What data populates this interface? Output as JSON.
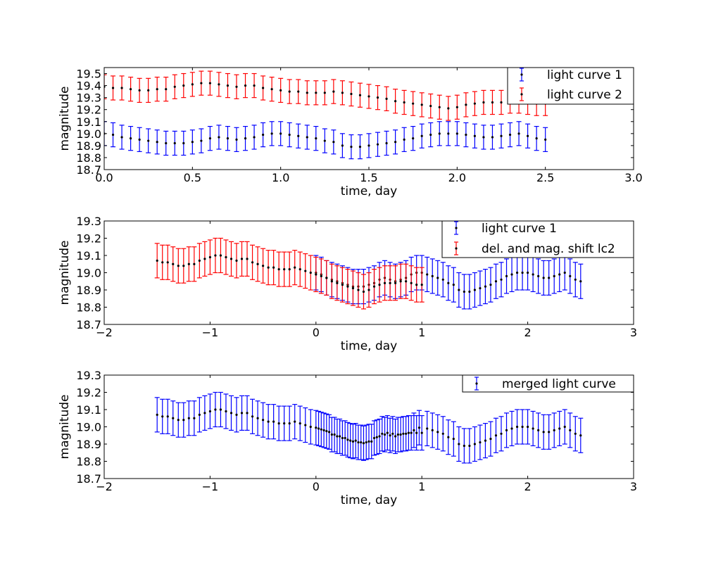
{
  "chart_data": [
    {
      "type": "scatter",
      "title": "",
      "xlabel": "time, day",
      "ylabel": "magnitude",
      "xlim": [
        0,
        3
      ],
      "ylim": [
        18.7,
        19.55
      ],
      "xticks": [
        {
          "value": 0.0,
          "label": "0.0"
        },
        {
          "value": 0.5,
          "label": "0.5"
        },
        {
          "value": 1.0,
          "label": "1.0"
        },
        {
          "value": 1.5,
          "label": "1.5"
        },
        {
          "value": 2.0,
          "label": "2.0"
        },
        {
          "value": 2.5,
          "label": "2.5"
        },
        {
          "value": 3.0,
          "label": "3.0"
        }
      ],
      "yticks": [
        {
          "value": 18.7,
          "label": "18.7"
        },
        {
          "value": 18.8,
          "label": "18.8"
        },
        {
          "value": 18.9,
          "label": "18.9"
        },
        {
          "value": 19.0,
          "label": "19.0"
        },
        {
          "value": 19.1,
          "label": "19.1"
        },
        {
          "value": 19.2,
          "label": "19.2"
        },
        {
          "value": 19.3,
          "label": "19.3"
        },
        {
          "value": 19.4,
          "label": "19.4"
        },
        {
          "value": 19.5,
          "label": "19.5"
        }
      ],
      "error_bar": 0.1,
      "grid": false,
      "legend_position": "upper right",
      "series": [
        {
          "name": "light curve 1",
          "color": "#0000ff",
          "x": [
            0.0,
            0.05,
            0.1,
            0.15,
            0.2,
            0.25,
            0.3,
            0.35,
            0.4,
            0.45,
            0.5,
            0.55,
            0.6,
            0.65,
            0.7,
            0.75,
            0.8,
            0.85,
            0.9,
            0.95,
            1.0,
            1.05,
            1.1,
            1.15,
            1.2,
            1.25,
            1.3,
            1.35,
            1.4,
            1.45,
            1.5,
            1.55,
            1.6,
            1.65,
            1.7,
            1.75,
            1.8,
            1.85,
            1.9,
            1.95,
            2.0,
            2.05,
            2.1,
            2.15,
            2.2,
            2.25,
            2.3,
            2.35,
            2.4,
            2.45,
            2.5
          ],
          "y": [
            19.0,
            18.99,
            18.97,
            18.96,
            18.95,
            18.94,
            18.93,
            18.92,
            18.92,
            18.92,
            18.93,
            18.94,
            18.96,
            18.97,
            18.96,
            18.95,
            18.96,
            18.97,
            18.99,
            19.0,
            19.0,
            18.99,
            18.98,
            18.97,
            18.96,
            18.94,
            18.93,
            18.9,
            18.89,
            18.89,
            18.9,
            18.91,
            18.92,
            18.93,
            18.95,
            18.96,
            18.98,
            18.99,
            19.0,
            19.0,
            19.0,
            18.99,
            18.98,
            18.97,
            18.97,
            18.98,
            18.99,
            19.0,
            18.98,
            18.96,
            18.95
          ]
        },
        {
          "name": "light curve 2",
          "color": "#ff0000",
          "x": [
            0.0,
            0.05,
            0.1,
            0.15,
            0.2,
            0.25,
            0.3,
            0.35,
            0.4,
            0.45,
            0.5,
            0.55,
            0.6,
            0.65,
            0.7,
            0.75,
            0.8,
            0.85,
            0.9,
            0.95,
            1.0,
            1.05,
            1.1,
            1.15,
            1.2,
            1.25,
            1.3,
            1.35,
            1.4,
            1.45,
            1.5,
            1.55,
            1.6,
            1.65,
            1.7,
            1.75,
            1.8,
            1.85,
            1.9,
            1.95,
            2.0,
            2.05,
            2.1,
            2.15,
            2.2,
            2.25,
            2.3,
            2.35,
            2.4,
            2.45,
            2.5
          ],
          "y": [
            19.39,
            19.38,
            19.38,
            19.37,
            19.36,
            19.36,
            19.37,
            19.37,
            19.39,
            19.4,
            19.41,
            19.42,
            19.42,
            19.41,
            19.4,
            19.39,
            19.4,
            19.4,
            19.38,
            19.37,
            19.36,
            19.35,
            19.35,
            19.34,
            19.34,
            19.34,
            19.35,
            19.34,
            19.33,
            19.32,
            19.31,
            19.3,
            19.29,
            19.27,
            19.26,
            19.25,
            19.24,
            19.23,
            19.22,
            19.21,
            19.22,
            19.24,
            19.25,
            19.26,
            19.26,
            19.26,
            19.27,
            19.27,
            19.26,
            19.25,
            19.25
          ]
        }
      ]
    },
    {
      "type": "scatter",
      "title": "",
      "xlabel": "time, day",
      "ylabel": "magnitude",
      "xlim": [
        -2,
        3
      ],
      "ylim": [
        18.7,
        19.3
      ],
      "xticks": [
        {
          "value": -2,
          "label": "−2"
        },
        {
          "value": -1,
          "label": "−1"
        },
        {
          "value": 0,
          "label": "0"
        },
        {
          "value": 1,
          "label": "1"
        },
        {
          "value": 2,
          "label": "2"
        },
        {
          "value": 3,
          "label": "3"
        }
      ],
      "yticks": [
        {
          "value": 18.7,
          "label": "18.7"
        },
        {
          "value": 18.8,
          "label": "18.8"
        },
        {
          "value": 18.9,
          "label": "18.9"
        },
        {
          "value": 19.0,
          "label": "19.0"
        },
        {
          "value": 19.1,
          "label": "19.1"
        },
        {
          "value": 19.2,
          "label": "19.2"
        },
        {
          "value": 19.3,
          "label": "19.3"
        }
      ],
      "error_bar": 0.1,
      "grid": false,
      "legend_position": "upper right",
      "series": [
        {
          "name": "light curve 1",
          "color": "#0000ff",
          "x": [
            0.0,
            0.05,
            0.1,
            0.15,
            0.2,
            0.25,
            0.3,
            0.35,
            0.4,
            0.45,
            0.5,
            0.55,
            0.6,
            0.65,
            0.7,
            0.75,
            0.8,
            0.85,
            0.9,
            0.95,
            1.0,
            1.05,
            1.1,
            1.15,
            1.2,
            1.25,
            1.3,
            1.35,
            1.4,
            1.45,
            1.5,
            1.55,
            1.6,
            1.65,
            1.7,
            1.75,
            1.8,
            1.85,
            1.9,
            1.95,
            2.0,
            2.05,
            2.1,
            2.15,
            2.2,
            2.25,
            2.3,
            2.35,
            2.4,
            2.45,
            2.5
          ],
          "y": [
            19.0,
            18.99,
            18.97,
            18.96,
            18.95,
            18.94,
            18.93,
            18.92,
            18.92,
            18.92,
            18.93,
            18.94,
            18.96,
            18.97,
            18.96,
            18.95,
            18.96,
            18.97,
            18.99,
            19.0,
            19.0,
            18.99,
            18.98,
            18.97,
            18.96,
            18.94,
            18.93,
            18.9,
            18.89,
            18.89,
            18.9,
            18.91,
            18.92,
            18.93,
            18.95,
            18.96,
            18.98,
            18.99,
            19.0,
            19.0,
            19.0,
            18.99,
            18.98,
            18.97,
            18.97,
            18.98,
            18.99,
            19.0,
            18.98,
            18.96,
            18.95
          ]
        },
        {
          "name": "del. and mag. shift lc2",
          "color": "#ff0000",
          "x": [
            -1.5,
            -1.45,
            -1.4,
            -1.35,
            -1.3,
            -1.25,
            -1.2,
            -1.15,
            -1.1,
            -1.05,
            -1.0,
            -0.95,
            -0.9,
            -0.85,
            -0.8,
            -0.75,
            -0.7,
            -0.65,
            -0.6,
            -0.55,
            -0.5,
            -0.45,
            -0.4,
            -0.35,
            -0.3,
            -0.25,
            -0.2,
            -0.15,
            -0.1,
            -0.05,
            0.0,
            0.05,
            0.1,
            0.15,
            0.2,
            0.25,
            0.3,
            0.35,
            0.4,
            0.45,
            0.5,
            0.55,
            0.6,
            0.65,
            0.7,
            0.75,
            0.8,
            0.85,
            0.9,
            0.95,
            1.0
          ],
          "y": [
            19.07,
            19.06,
            19.06,
            19.05,
            19.04,
            19.04,
            19.05,
            19.05,
            19.07,
            19.08,
            19.09,
            19.1,
            19.1,
            19.09,
            19.08,
            19.07,
            19.08,
            19.08,
            19.06,
            19.05,
            19.04,
            19.03,
            19.03,
            19.02,
            19.02,
            19.02,
            19.03,
            19.02,
            19.01,
            19.0,
            18.99,
            18.98,
            18.97,
            18.95,
            18.94,
            18.93,
            18.92,
            18.91,
            18.9,
            18.89,
            18.9,
            18.92,
            18.93,
            18.94,
            18.94,
            18.94,
            18.95,
            18.95,
            18.94,
            18.93,
            18.93
          ]
        }
      ]
    },
    {
      "type": "scatter",
      "title": "",
      "xlabel": "time, day",
      "ylabel": "magnitude",
      "xlim": [
        -2,
        3
      ],
      "ylim": [
        18.7,
        19.3
      ],
      "xticks": [
        {
          "value": -2,
          "label": "−2"
        },
        {
          "value": -1,
          "label": "−1"
        },
        {
          "value": 0,
          "label": "0"
        },
        {
          "value": 1,
          "label": "1"
        },
        {
          "value": 2,
          "label": "2"
        },
        {
          "value": 3,
          "label": "3"
        }
      ],
      "yticks": [
        {
          "value": 18.7,
          "label": "18.7"
        },
        {
          "value": 18.8,
          "label": "18.8"
        },
        {
          "value": 18.9,
          "label": "18.9"
        },
        {
          "value": 19.0,
          "label": "19.0"
        },
        {
          "value": 19.1,
          "label": "19.1"
        },
        {
          "value": 19.2,
          "label": "19.2"
        },
        {
          "value": 19.3,
          "label": "19.3"
        }
      ],
      "error_bar": 0.1,
      "grid": false,
      "legend_position": "upper right",
      "series": [
        {
          "name": "merged light curve",
          "color": "#0000ff",
          "x": [
            -1.5,
            -1.45,
            -1.4,
            -1.35,
            -1.3,
            -1.25,
            -1.2,
            -1.15,
            -1.1,
            -1.05,
            -1.0,
            -0.95,
            -0.9,
            -0.85,
            -0.8,
            -0.75,
            -0.7,
            -0.65,
            -0.6,
            -0.55,
            -0.5,
            -0.45,
            -0.4,
            -0.35,
            -0.3,
            -0.25,
            -0.2,
            -0.15,
            -0.1,
            -0.05,
            0.0,
            0.025,
            0.05,
            0.075,
            0.1,
            0.125,
            0.15,
            0.175,
            0.2,
            0.225,
            0.25,
            0.275,
            0.3,
            0.325,
            0.35,
            0.375,
            0.4,
            0.425,
            0.45,
            0.475,
            0.5,
            0.525,
            0.55,
            0.575,
            0.6,
            0.625,
            0.65,
            0.675,
            0.7,
            0.725,
            0.75,
            0.775,
            0.8,
            0.825,
            0.85,
            0.875,
            0.9,
            0.925,
            0.95,
            0.975,
            1.0,
            1.05,
            1.1,
            1.15,
            1.2,
            1.25,
            1.3,
            1.35,
            1.4,
            1.45,
            1.5,
            1.55,
            1.6,
            1.65,
            1.7,
            1.75,
            1.8,
            1.85,
            1.9,
            1.95,
            2.0,
            2.05,
            2.1,
            2.15,
            2.2,
            2.25,
            2.3,
            2.35,
            2.4,
            2.45,
            2.5
          ],
          "y": [
            19.07,
            19.06,
            19.06,
            19.05,
            19.04,
            19.04,
            19.05,
            19.05,
            19.07,
            19.08,
            19.09,
            19.1,
            19.1,
            19.09,
            19.08,
            19.07,
            19.08,
            19.08,
            19.06,
            19.05,
            19.04,
            19.03,
            19.03,
            19.02,
            19.02,
            19.02,
            19.03,
            19.02,
            19.01,
            19.0,
            18.995,
            18.99,
            18.985,
            18.98,
            18.975,
            18.97,
            18.955,
            18.955,
            18.945,
            18.945,
            18.935,
            18.935,
            18.925,
            18.92,
            18.915,
            18.92,
            18.91,
            18.91,
            18.905,
            18.91,
            18.915,
            18.915,
            18.935,
            18.94,
            18.945,
            18.96,
            18.955,
            18.965,
            18.95,
            18.96,
            18.945,
            18.955,
            18.955,
            18.96,
            18.96,
            18.965,
            18.965,
            18.98,
            18.965,
            18.995,
            18.965,
            18.99,
            18.98,
            18.97,
            18.96,
            18.94,
            18.93,
            18.9,
            18.89,
            18.89,
            18.9,
            18.91,
            18.92,
            18.93,
            18.95,
            18.96,
            18.98,
            18.99,
            19.0,
            19.0,
            19.0,
            18.99,
            18.98,
            18.97,
            18.97,
            18.98,
            18.99,
            19.0,
            18.98,
            18.96,
            18.95
          ]
        }
      ]
    }
  ]
}
